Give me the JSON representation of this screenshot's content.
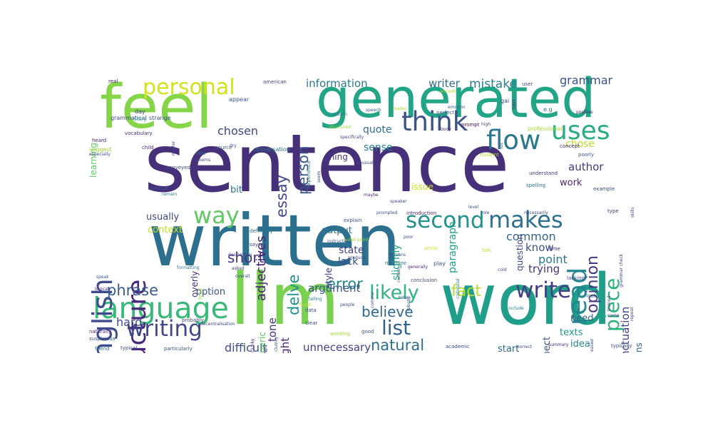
{
  "words": [
    {
      "text": "sentence",
      "color": "#46307a"
    },
    {
      "text": "written",
      "color": "#2c6f8e"
    },
    {
      "text": "feel",
      "color": "#86d549"
    },
    {
      "text": "generated",
      "color": "#21a586"
    },
    {
      "text": "llm",
      "color": "#7ad151"
    },
    {
      "text": "word",
      "color": "#1f9e89"
    },
    {
      "text": "language",
      "color": "#38b977"
    },
    {
      "text": "think",
      "color": "#3b528b"
    },
    {
      "text": "flow",
      "color": "#2a778e"
    },
    {
      "text": "uses",
      "color": "#27ad81"
    },
    {
      "text": "personal",
      "color": "#d2e21b"
    },
    {
      "text": "structure",
      "color": "#482878"
    },
    {
      "text": "english",
      "color": "#3e4a89"
    },
    {
      "text": "way",
      "color": "#5ec962"
    },
    {
      "text": "second",
      "color": "#21918c"
    },
    {
      "text": "makes",
      "color": "#2e6f8e"
    },
    {
      "text": "read",
      "color": "#24868e"
    },
    {
      "text": "writing",
      "color": "#3f4889"
    },
    {
      "text": "write",
      "color": "#433e85"
    },
    {
      "text": "likely",
      "color": "#2fb47c"
    },
    {
      "text": "list",
      "color": "#33638d"
    },
    {
      "text": "piece",
      "color": "#2db27d"
    },
    {
      "text": "natural",
      "color": "#2e6e8e"
    },
    {
      "text": "believe",
      "color": "#31688e"
    },
    {
      "text": "phrase",
      "color": "#365d8d"
    },
    {
      "text": "error",
      "color": "#238a8d"
    },
    {
      "text": "fact",
      "color": "#b5de2b"
    },
    {
      "text": "delve",
      "color": "#20928c"
    },
    {
      "text": "essay",
      "color": "#404688"
    },
    {
      "text": "opinion",
      "color": "#453781"
    },
    {
      "text": "mistake",
      "color": "#277f8e"
    },
    {
      "text": "grammar",
      "color": "#3b528b"
    },
    {
      "text": "person",
      "color": "#38588c"
    },
    {
      "text": "short",
      "color": "#453581"
    },
    {
      "text": "writer",
      "color": "#2f6b8e"
    },
    {
      "text": "information",
      "color": "#29798e"
    },
    {
      "text": "adjectives",
      "color": "#482173"
    },
    {
      "text": "chosen",
      "color": "#3f4788"
    },
    {
      "text": "difficult",
      "color": "#3d4e8a"
    },
    {
      "text": "unnecessary",
      "color": "#424086"
    },
    {
      "text": "argument",
      "color": "#3a548c"
    },
    {
      "text": "hard",
      "color": "#3e4989"
    },
    {
      "text": "paragraph",
      "color": "#1fa088"
    },
    {
      "text": "author",
      "color": "#433d84"
    },
    {
      "text": "punctuation",
      "color": "#414487"
    },
    {
      "text": "trying",
      "color": "#46337e"
    },
    {
      "text": "common",
      "color": "#31668e"
    },
    {
      "text": "know",
      "color": "#3c4f8a"
    },
    {
      "text": "point",
      "color": "#2a788e"
    },
    {
      "text": "quote",
      "color": "#2f6c8e"
    },
    {
      "text": "sense",
      "color": "#27808e"
    },
    {
      "text": "slightly",
      "color": "#22a785"
    },
    {
      "text": "lack",
      "color": "#3d4d8a"
    },
    {
      "text": "state",
      "color": "#414287"
    },
    {
      "text": "thought",
      "color": "#482677"
    },
    {
      "text": "tone",
      "color": "#46327e"
    },
    {
      "text": "work",
      "color": "#482878"
    },
    {
      "text": "usually",
      "color": "#3f4788"
    },
    {
      "text": "option",
      "color": "#3a538b"
    },
    {
      "text": "output",
      "color": "#2c728e"
    },
    {
      "text": "context",
      "color": "#c2df23"
    },
    {
      "text": "bit",
      "color": "#2d718e"
    },
    {
      "text": "chose",
      "color": "#b8de29"
    },
    {
      "text": "expect",
      "color": "#3b528b"
    },
    {
      "text": "idea",
      "color": "#25858e"
    },
    {
      "text": "need",
      "color": "#33628d"
    },
    {
      "text": "texts",
      "color": "#1f9a8a"
    },
    {
      "text": "start",
      "color": "#31678e"
    },
    {
      "text": "contains",
      "color": "#355f8d"
    },
    {
      "text": "issue",
      "color": "#c8e020"
    },
    {
      "text": "question",
      "color": "#3f4788"
    },
    {
      "text": "generic",
      "color": "#5cc863"
    },
    {
      "text": "overly",
      "color": "#472f7d"
    },
    {
      "text": "style",
      "color": "#46307e"
    },
    {
      "text": "thing",
      "color": "#46307e"
    },
    {
      "text": "learning",
      "color": "#5ec962"
    },
    {
      "text": "real",
      "color": "#482878"
    },
    {
      "text": "grammatical",
      "color": "#3e4989"
    },
    {
      "text": "strange",
      "color": "#3b528b"
    },
    {
      "text": "appear",
      "color": "#3b518b"
    },
    {
      "text": "american",
      "color": "#433e85"
    },
    {
      "text": "user",
      "color": "#3f4788"
    },
    {
      "text": "smooth",
      "color": "#bddf26"
    },
    {
      "text": "emotion",
      "color": "#365c8d"
    },
    {
      "text": "gai",
      "color": "#414487"
    },
    {
      "text": "e g",
      "color": "#2c728e"
    },
    {
      "text": "speech",
      "color": "#365d8d"
    },
    {
      "text": "pattern",
      "color": "#2c738e"
    },
    {
      "text": "reader",
      "color": "#addc30"
    },
    {
      "text": "perfect",
      "color": "#3b528b"
    },
    {
      "text": "prompt",
      "color": "#460b5e"
    },
    {
      "text": "positive",
      "color": "#482475"
    },
    {
      "text": "professional",
      "color": "#a8db34"
    },
    {
      "text": "high",
      "color": "#3e4989"
    },
    {
      "text": "body",
      "color": "#472d7b"
    },
    {
      "text": "structured",
      "color": "#9bd93c"
    },
    {
      "text": "specifically",
      "color": "#3f4788"
    },
    {
      "text": "day",
      "color": "#424086"
    },
    {
      "text": "story",
      "color": "#1f9e89"
    },
    {
      "text": "vocabulary",
      "color": "#482878"
    },
    {
      "text": "heard",
      "color": "#482475"
    },
    {
      "text": "suggest",
      "color": "#a0da39"
    },
    {
      "text": "especially",
      "color": "#3e4989"
    },
    {
      "text": "child",
      "color": "#481f70"
    },
    {
      "text": "little",
      "color": "#2e6e8e"
    },
    {
      "text": "poems",
      "color": "#3e4a89"
    },
    {
      "text": "source",
      "color": "#3b528b"
    },
    {
      "text": "dry",
      "color": "#414487"
    },
    {
      "text": "conversation",
      "color": "#2a788e"
    },
    {
      "text": "conveyed",
      "color": "#3f4788"
    },
    {
      "text": "unusual",
      "color": "#3e4989"
    },
    {
      "text": "student",
      "color": "#b5de2b"
    },
    {
      "text": "concept",
      "color": "#482878"
    },
    {
      "text": "poorly",
      "color": "#3b528b"
    },
    {
      "text": "understand",
      "color": "#46337e"
    },
    {
      "text": "spelling",
      "color": "#2c728e"
    },
    {
      "text": "example",
      "color": "#3e4989"
    },
    {
      "text": "instead",
      "color": "#3b528b"
    },
    {
      "text": "remain",
      "color": "#2a788e"
    },
    {
      "text": "maybe",
      "color": "#482878"
    },
    {
      "text": "speaker",
      "color": "#3f4788"
    },
    {
      "text": "level",
      "color": "#3e4989"
    },
    {
      "text": "type",
      "color": "#46337e"
    },
    {
      "text": "prompted",
      "color": "#3b528b"
    },
    {
      "text": "introduction",
      "color": "#482878"
    },
    {
      "text": "role",
      "color": "#414487"
    },
    {
      "text": "necessarily",
      "color": "#3e4989"
    },
    {
      "text": "definitely",
      "color": "#2c728e"
    },
    {
      "text": "explain",
      "color": "#3b528b"
    },
    {
      "text": "poor",
      "color": "#3e4989"
    },
    {
      "text": "saying",
      "color": "#414487"
    },
    {
      "text": "instructed",
      "color": "#3b528b"
    },
    {
      "text": "bullet point",
      "color": "#a0da39"
    },
    {
      "text": "article",
      "color": "#d2e21b"
    },
    {
      "text": "time",
      "color": "#482878"
    },
    {
      "text": "talk",
      "color": "#bddf26"
    },
    {
      "text": "description",
      "color": "#3e4989"
    },
    {
      "text": "formatting",
      "color": "#2a788e"
    },
    {
      "text": "asked",
      "color": "#414487"
    },
    {
      "text": "overall",
      "color": "#3e4989"
    },
    {
      "text": "humans",
      "color": "#3b528b"
    },
    {
      "text": "machine",
      "color": "#2c728e"
    },
    {
      "text": "produce",
      "color": "#3e4989"
    },
    {
      "text": "generally",
      "color": "#482878"
    },
    {
      "text": "play",
      "color": "#3b528b"
    },
    {
      "text": "cold",
      "color": "#3e4989"
    },
    {
      "text": "lacking",
      "color": "#3f4788"
    },
    {
      "text": "look",
      "color": "#2c728e"
    },
    {
      "text": "speak",
      "color": "#3b528b"
    },
    {
      "text": "logical",
      "color": "#482878"
    },
    {
      "text": "conclusion",
      "color": "#3e4989"
    },
    {
      "text": "taken",
      "color": "#3b528b"
    },
    {
      "text": "fluent",
      "color": "#bddf26"
    },
    {
      "text": "people",
      "color": "#3e4989"
    },
    {
      "text": "telling",
      "color": "#2a788e"
    },
    {
      "text": "probably",
      "color": "#414487"
    },
    {
      "text": "decentralisation",
      "color": "#3f4788"
    },
    {
      "text": "naturally",
      "color": "#482878"
    },
    {
      "text": "suspicious",
      "color": "#3b528b"
    },
    {
      "text": "data",
      "color": "#3e4989"
    },
    {
      "text": "clear",
      "color": "#414487"
    },
    {
      "text": "wording",
      "color": "#a8db34"
    },
    {
      "text": "good",
      "color": "#3b528b"
    },
    {
      "text": "academic",
      "color": "#3e4989"
    },
    {
      "text": "friend",
      "color": "#2c728e"
    },
    {
      "text": "typical",
      "color": "#3e4989"
    },
    {
      "text": "particularly",
      "color": "#3b528b"
    },
    {
      "text": "correct",
      "color": "#3e4989"
    },
    {
      "text": "summary",
      "color": "#482878"
    },
    {
      "text": "typically",
      "color": "#3b528b"
    },
    {
      "text": "come",
      "color": "#3e4989"
    },
    {
      "text": "include",
      "color": "#2a788e"
    },
    {
      "text": "easier",
      "color": "#3e4989"
    },
    {
      "text": "script",
      "color": "#414487"
    },
    {
      "text": "clumsy",
      "color": "#3b528b"
    },
    {
      "text": "matter",
      "color": "#3e4989"
    },
    {
      "text": "tend",
      "color": "#a0da39"
    },
    {
      "text": "lot",
      "color": "#3b528b"
    },
    {
      "text": "non",
      "color": "#482878"
    },
    {
      "text": "skills",
      "color": "#3e4989"
    },
    {
      "text": "experience",
      "color": "#2c728e"
    },
    {
      "text": "seem",
      "color": "#3b528b"
    },
    {
      "text": "trained",
      "color": "#3e4989"
    },
    {
      "text": "repeat",
      "color": "#414487"
    },
    {
      "text": "robotic",
      "color": "#3b528b"
    },
    {
      "text": "comma",
      "color": "#3e4989"
    },
    {
      "text": "colloquial",
      "color": "#2a788e"
    },
    {
      "text": "grammar check",
      "color": "#3e4989"
    },
    {
      "text": "certain",
      "color": "#3b528b"
    },
    {
      "text": "clunky",
      "color": "#482878"
    }
  ]
}
